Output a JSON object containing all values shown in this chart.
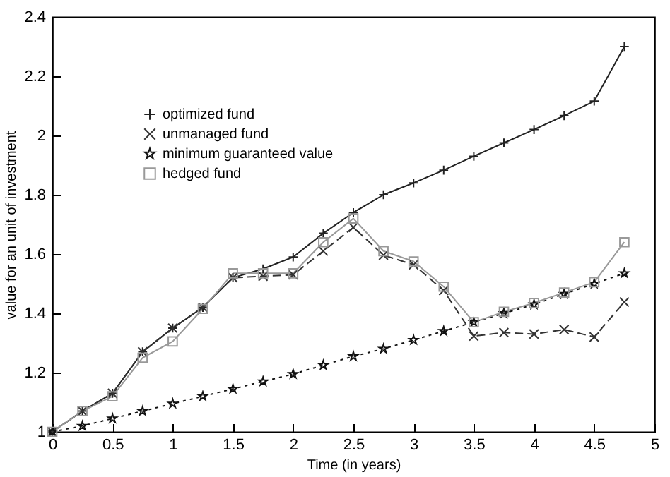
{
  "chart_data": {
    "type": "line",
    "xlabel": "Time (in years)",
    "ylabel": "value for an unit of investment",
    "x": [
      0,
      0.25,
      0.5,
      0.75,
      1,
      1.25,
      1.5,
      1.75,
      2,
      2.25,
      2.5,
      2.75,
      3,
      3.25,
      3.5,
      3.75,
      4,
      4.25,
      4.5,
      4.75
    ],
    "series": [
      {
        "name": "optimized fund",
        "color": "#222222",
        "marker": "cross",
        "line_style": "solid",
        "values": [
          1,
          1.07,
          1.13,
          1.27,
          1.35,
          1.42,
          1.52,
          1.55,
          1.59,
          1.67,
          1.74,
          1.8,
          1.84,
          1.883,
          1.93,
          1.975,
          2.02,
          2.067,
          2.116,
          2.3
        ]
      },
      {
        "name": "unmanaged fund",
        "color": "#333333",
        "marker": "cross",
        "line_style": "dashed",
        "values": [
          1,
          1.07,
          1.13,
          1.27,
          1.35,
          1.42,
          1.52,
          1.525,
          1.53,
          1.61,
          1.69,
          1.596,
          1.564,
          1.477,
          1.323,
          1.335,
          1.33,
          1.345,
          1.32,
          1.438
        ]
      },
      {
        "name": "minimum guaranteed value",
        "color": "#111111",
        "marker": "star",
        "line_style": "dotted",
        "values": [
          1,
          1.02,
          1.045,
          1.07,
          1.095,
          1.12,
          1.145,
          1.17,
          1.195,
          1.225,
          1.255,
          1.28,
          1.31,
          1.34,
          1.37,
          1.4,
          1.43,
          1.465,
          1.5,
          1.535
        ]
      },
      {
        "name": "hedged fund",
        "color": "#999999",
        "marker": "square",
        "line_style": "solid",
        "values": [
          1,
          1.07,
          1.12,
          1.25,
          1.305,
          1.415,
          1.535,
          1.535,
          1.535,
          1.64,
          1.72,
          1.61,
          1.575,
          1.49,
          1.37,
          1.405,
          1.435,
          1.47,
          1.505,
          1.64
        ]
      }
    ],
    "xlim": [
      0,
      5
    ],
    "xticks": [
      0,
      0.5,
      1,
      1.5,
      2,
      2.5,
      3,
      3.5,
      4,
      4.5,
      5
    ],
    "ylim": [
      1,
      2.4
    ],
    "yticks": [
      1,
      1.2,
      1.4,
      1.6,
      1.8,
      2,
      2.2,
      2.4
    ],
    "grid": false,
    "legend": "top left"
  }
}
